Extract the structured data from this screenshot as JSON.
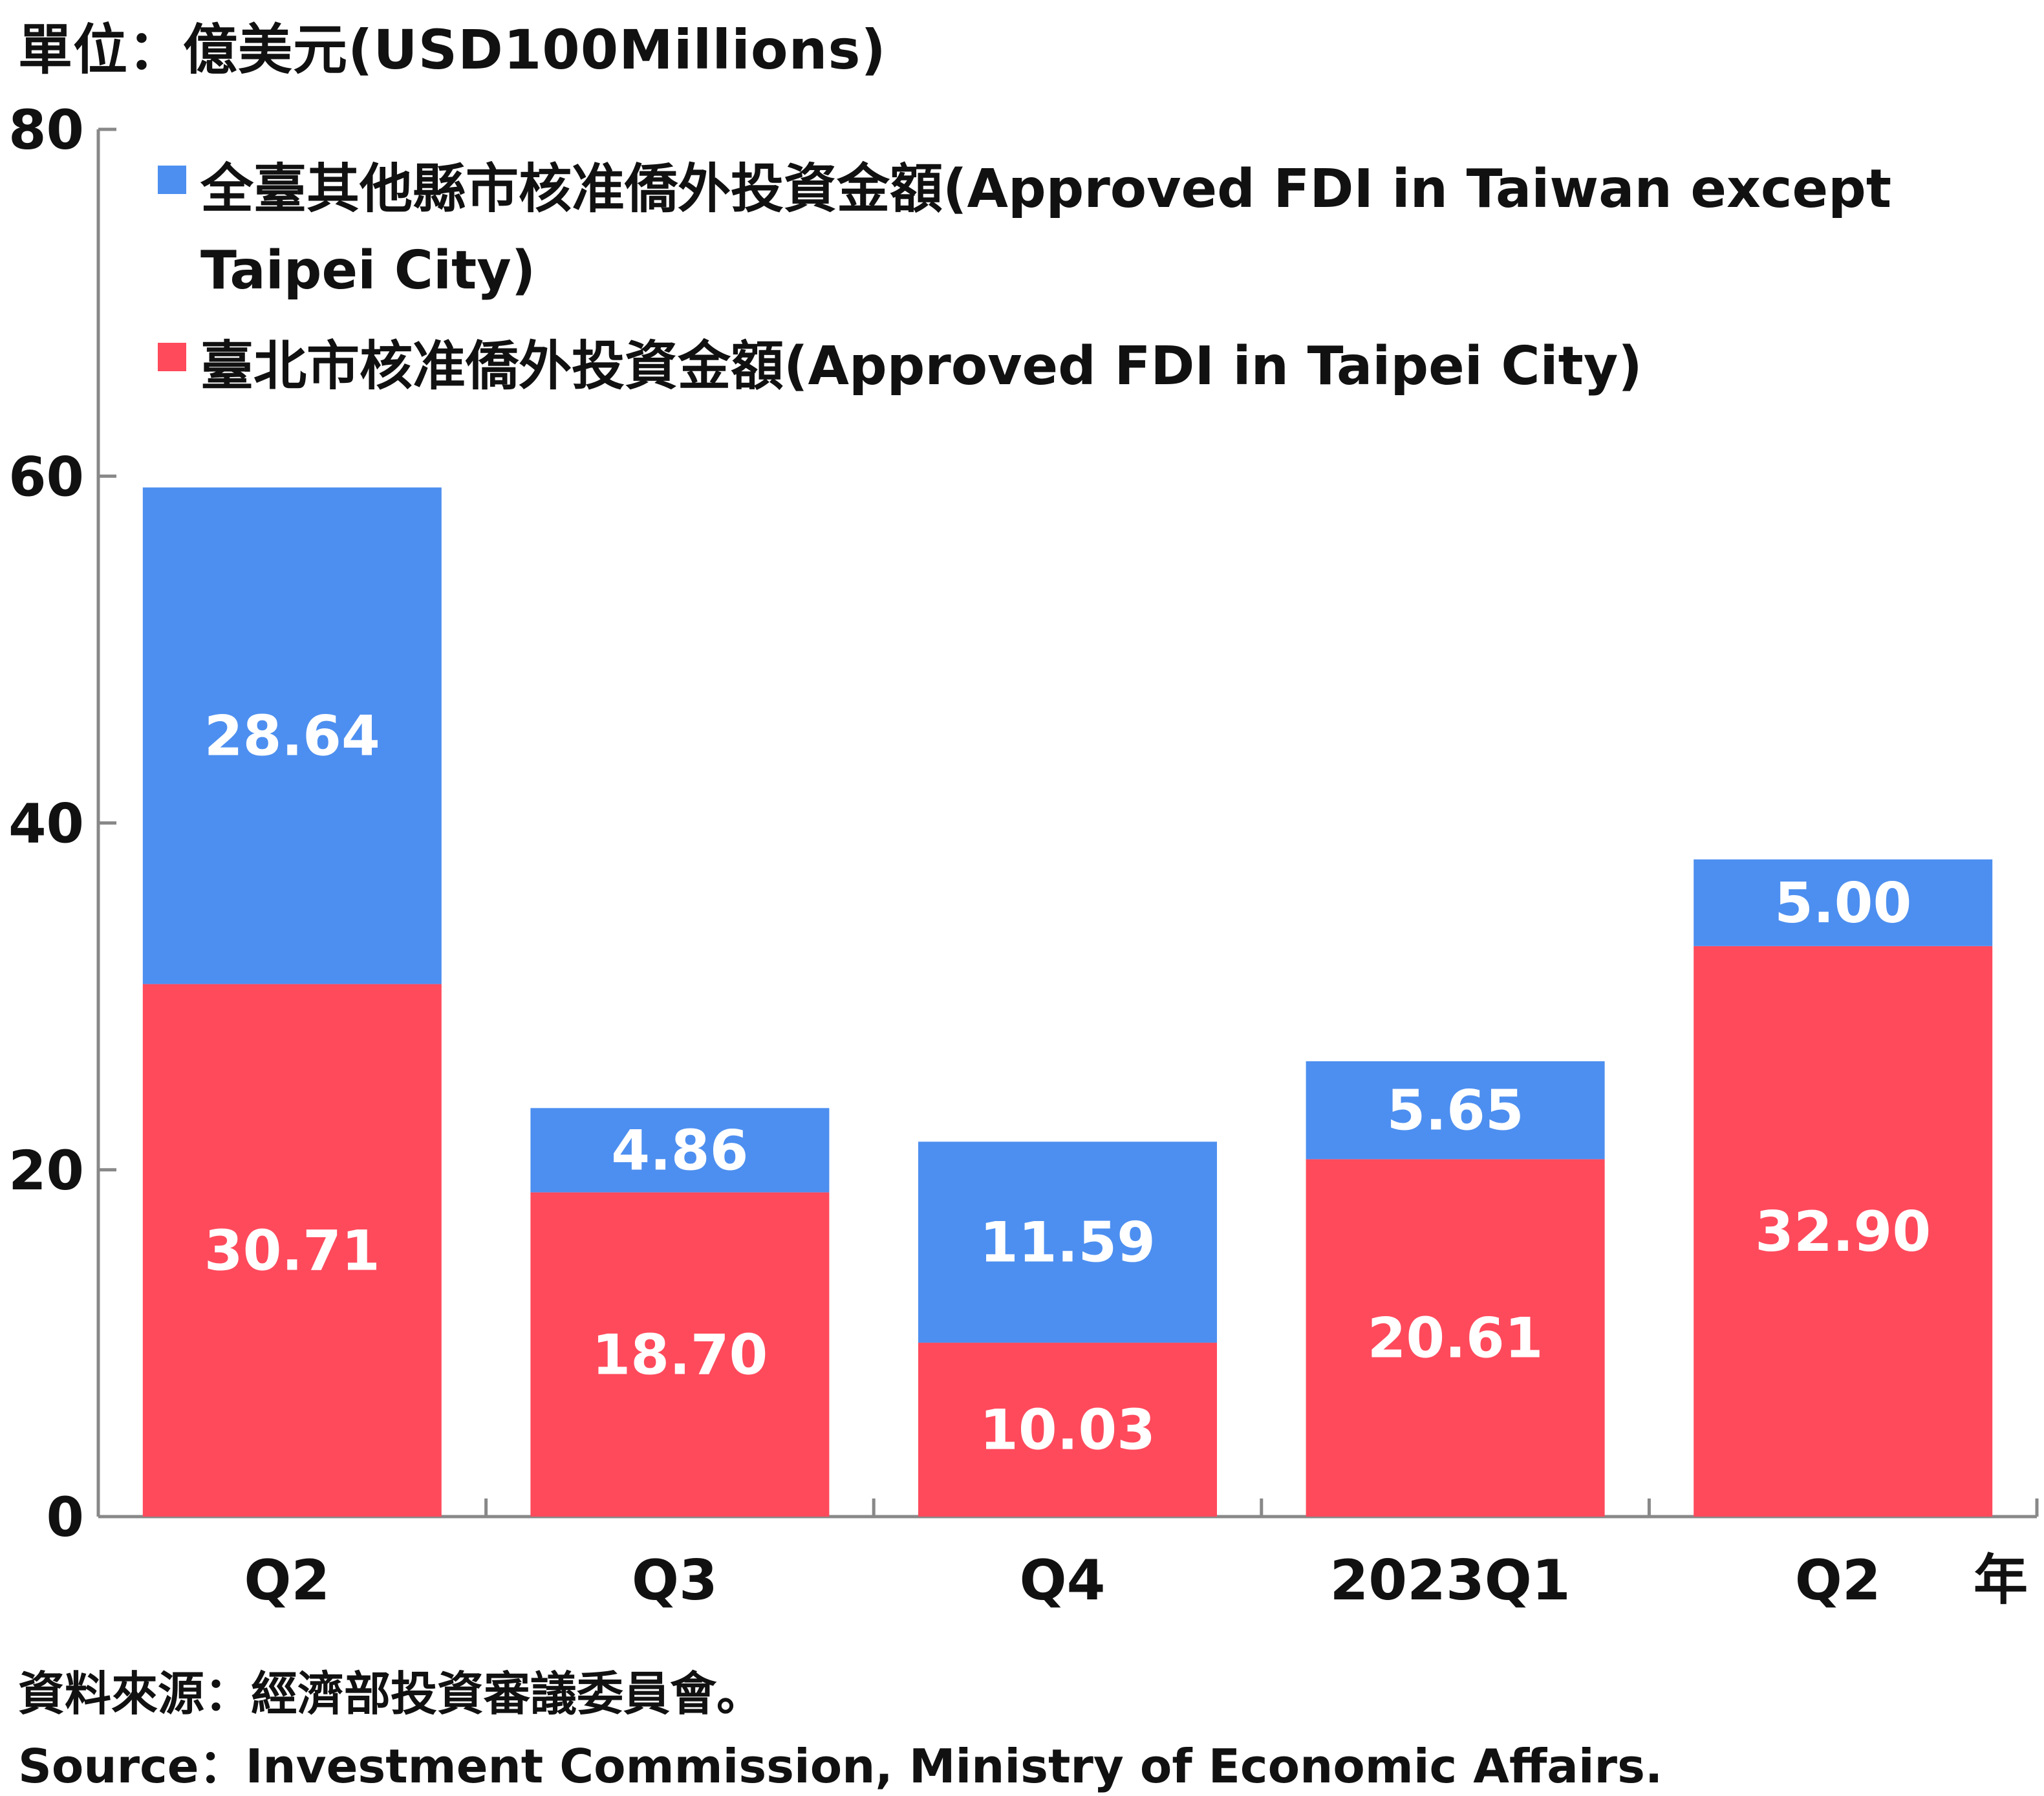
{
  "unit_label": "單位：億美元(USD100Millions)",
  "x_suffix": "年",
  "source_zh": "資料來源：經濟部投資審議委員會。",
  "source_en": "Source：Investment Commission, Ministry of Economic Affairs.",
  "colors": {
    "taipei": "#ff4a5c",
    "other": "#4d8ff0",
    "axis": "#888888",
    "label_text": "#ffffff"
  },
  "chart_data": {
    "type": "bar",
    "stacked": true,
    "title": "",
    "xlabel": "",
    "ylabel": "單位：億美元(USD100Millions)",
    "categories": [
      "Q2",
      "Q3",
      "Q4",
      "2023Q1",
      "Q2"
    ],
    "ylim": [
      0,
      80
    ],
    "yticks": [
      0,
      20,
      40,
      60,
      80
    ],
    "grid": false,
    "legend_position": "top-left",
    "series": [
      {
        "name": "臺北市核准僑外投資金額(Approved FDI in Taipei City)",
        "values": [
          30.71,
          18.7,
          10.03,
          20.61,
          32.9
        ],
        "labels": [
          "30.71",
          "18.70",
          "10.03",
          "20.61",
          "32.90"
        ]
      },
      {
        "name": "全臺其他縣市核准僑外投資金額(Approved FDI in Taiwan except Taipei City)",
        "values": [
          28.64,
          4.86,
          11.59,
          5.65,
          5.0
        ],
        "labels": [
          "28.64",
          "4.86",
          "11.59",
          "5.65",
          "5.00"
        ]
      }
    ]
  }
}
